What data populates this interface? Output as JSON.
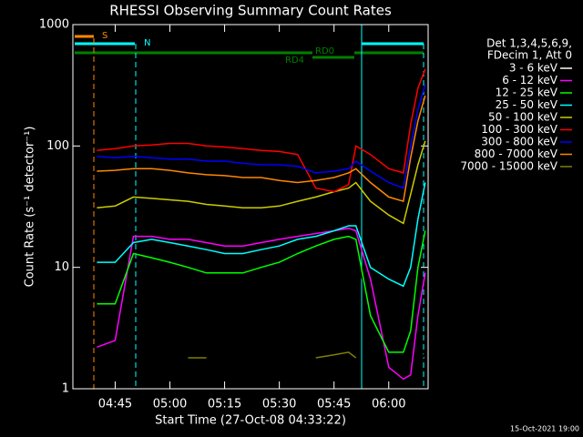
{
  "chart_data": {
    "type": "line",
    "title": "RHESSI Observing Summary Count Rates",
    "x_label": "Start Time (27-Oct-08 04:33:22)",
    "y_label": "Count Rate (s⁻¹ detector⁻¹)",
    "log_y": true,
    "xlim": [
      273.4,
      370.8
    ],
    "xticks": [
      {
        "value": 285,
        "label": "04:45"
      },
      {
        "value": 300,
        "label": "05:00"
      },
      {
        "value": 315,
        "label": "05:15"
      },
      {
        "value": 330,
        "label": "05:30"
      },
      {
        "value": 345,
        "label": "05:45"
      },
      {
        "value": 360,
        "label": "06:00"
      }
    ],
    "ylim": [
      1,
      1000
    ],
    "yticks": [
      1,
      10,
      100,
      1000
    ],
    "legend_title": [
      "Det 1,3,4,5,6,9,",
      "FDecim 1, Att 0"
    ],
    "legend": "right",
    "annotations": [
      "S",
      "N",
      "RD0",
      "RD4"
    ],
    "footer": "15-Oct-2021 19:00",
    "x": [
      280,
      285,
      290,
      295,
      300,
      305,
      310,
      315,
      320,
      325,
      330,
      335,
      340,
      345,
      349,
      351,
      355,
      360,
      364,
      366,
      368,
      370
    ],
    "series": [
      {
        "name": "3 - 6 keV",
        "color": "#000000",
        "values": [
          1.1,
          1.2,
          13,
          12,
          11,
          9,
          8,
          7.5,
          7,
          7.5,
          9,
          11,
          13,
          14,
          15,
          14,
          4,
          1.5,
          1.2,
          1.1,
          1.5,
          2
        ]
      },
      {
        "name": "6 - 12 keV",
        "color": "#ff00ff",
        "values": [
          2.2,
          2.5,
          18,
          18,
          17,
          17,
          16,
          15,
          15,
          16,
          17,
          18,
          19,
          20,
          21,
          20,
          8,
          1.5,
          1.2,
          1.3,
          4,
          9
        ]
      },
      {
        "name": "12 - 25 keV",
        "color": "#00ff00",
        "values": [
          5,
          5,
          13,
          12,
          11,
          10,
          9,
          9,
          9,
          10,
          11,
          13,
          15,
          17,
          18,
          17,
          4,
          2,
          2,
          3,
          10,
          20
        ]
      },
      {
        "name": "25 - 50 keV",
        "color": "#00ffff",
        "values": [
          11,
          11,
          16,
          17,
          16,
          15,
          14,
          13,
          13,
          14,
          15,
          17,
          18,
          20,
          22,
          22,
          10,
          8,
          7,
          10,
          25,
          50
        ]
      },
      {
        "name": "50 - 100 keV",
        "color": "#cccc00",
        "values": [
          31,
          32,
          38,
          37,
          36,
          35,
          33,
          32,
          31,
          31,
          32,
          35,
          38,
          42,
          45,
          50,
          35,
          27,
          23,
          40,
          70,
          110
        ]
      },
      {
        "name": "100 - 300 keV",
        "color": "#ff0000",
        "values": [
          92,
          95,
          100,
          102,
          105,
          105,
          100,
          98,
          95,
          92,
          90,
          85,
          45,
          42,
          48,
          100,
          85,
          65,
          60,
          150,
          300,
          430
        ]
      },
      {
        "name": "300 - 800 keV",
        "color": "#0000ff",
        "values": [
          82,
          80,
          82,
          80,
          78,
          78,
          75,
          75,
          72,
          70,
          70,
          68,
          60,
          62,
          65,
          75,
          62,
          50,
          45,
          100,
          200,
          320
        ]
      },
      {
        "name": "800 - 7000 keV",
        "color": "#ff8800",
        "values": [
          62,
          63,
          65,
          65,
          63,
          60,
          58,
          57,
          55,
          55,
          52,
          50,
          52,
          55,
          60,
          65,
          50,
          38,
          35,
          80,
          160,
          260
        ]
      },
      {
        "name": "7000 - 15000 keV",
        "color": "#808000",
        "values": [
          null,
          null,
          null,
          null,
          null,
          1.8,
          1.8,
          null,
          null,
          null,
          null,
          null,
          1.8,
          1.9,
          2,
          1.8,
          null,
          null,
          null,
          null,
          null,
          null
        ]
      }
    ]
  }
}
